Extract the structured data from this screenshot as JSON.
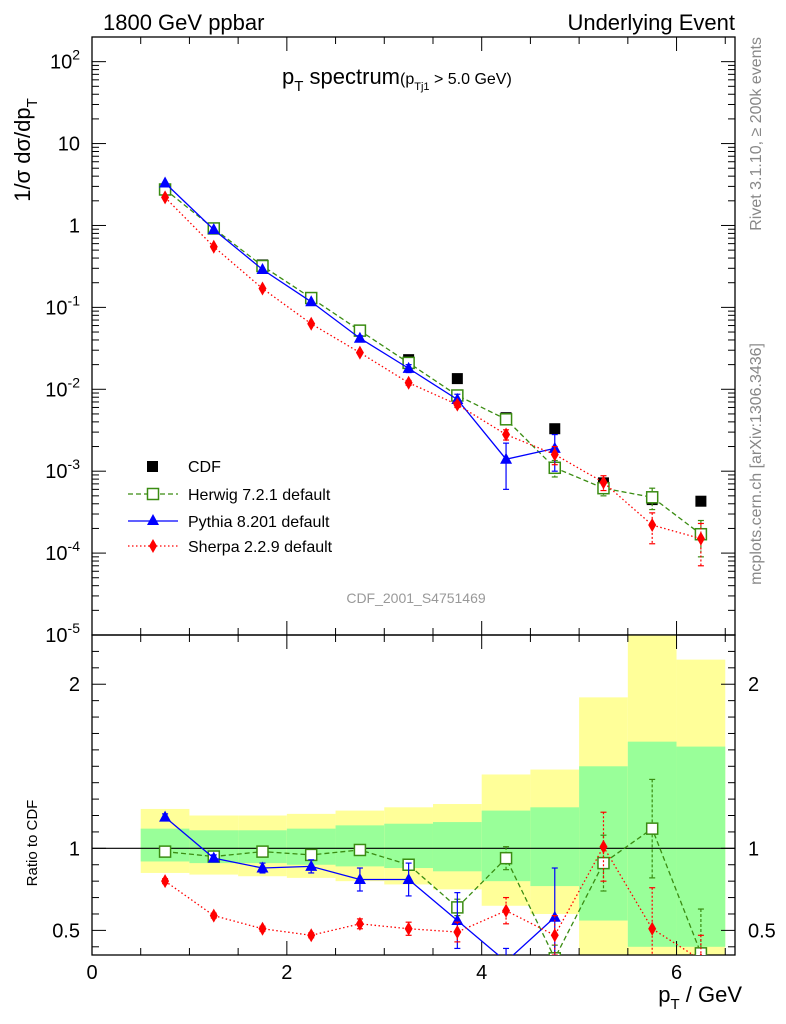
{
  "header": {
    "left": "1800 GeV ppbar",
    "right": "Underlying Event"
  },
  "side": {
    "rivet": "Rivet 3.1.10, ≥ 200k events",
    "mcplots": "mcplots.cern.ch [arXiv:1306.3436]"
  },
  "plot_title": {
    "main": "p",
    "main_sub": "T",
    "main_rest": " spectrum",
    "cut_open": "(p",
    "cut_sub": "Tj1",
    "cut_rest": " > 5.0 GeV)"
  },
  "watermark": "CDF_2001_S4751469",
  "axes": {
    "ylabel_top": "1/σ dσ/dp",
    "ylabel_top_sub": "T",
    "ylabel_bottom": "Ratio to CDF",
    "xlabel": "p",
    "xlabel_sub": "T",
    "xlabel_rest": " / GeV"
  },
  "colors": {
    "cdf": "#000000",
    "herwig": "#3a8c12",
    "pythia": "#0000ff",
    "sherpa": "#ff0000",
    "band_outer": "#ffff99",
    "band_inner": "#99ff99"
  },
  "chart_data": [
    {
      "type": "scatter",
      "panel": "main",
      "yscale": "log",
      "xlim": [
        0,
        6.6
      ],
      "ylim": [
        1e-05,
        200
      ],
      "x_ticks": [
        "0",
        "2",
        "4",
        "6"
      ],
      "y_ticks": [
        {
          "base": "10",
          "exp": "-5"
        },
        {
          "base": "10",
          "exp": "-4"
        },
        {
          "base": "10",
          "exp": "-3"
        },
        {
          "base": "10",
          "exp": "-2"
        },
        {
          "base": "10",
          "exp": "-1"
        },
        {
          "base": "1",
          "exp": ""
        },
        {
          "base": "10",
          "exp": ""
        },
        {
          "base": "10",
          "exp": "2"
        }
      ],
      "x": [
        0.75,
        1.25,
        1.75,
        2.25,
        2.75,
        3.25,
        3.75,
        4.25,
        4.75,
        5.25,
        5.75,
        6.25
      ],
      "series": [
        {
          "name": "CDF",
          "style": "square-filled",
          "values": [
            2.75,
            0.93,
            0.33,
            0.13,
            0.052,
            0.023,
            0.0135,
            0.0045,
            0.0033,
            0.00072,
            0.00045,
            0.00043
          ]
        },
        {
          "name": "Herwig 7.2.1 default",
          "style": "square-open-dashed",
          "values": [
            2.75,
            0.92,
            0.32,
            0.13,
            0.052,
            0.021,
            0.0084,
            0.0043,
            0.0011,
            0.00062,
            0.00048,
            0.00017
          ],
          "errors": [
            0.05,
            0.02,
            0.01,
            0.004,
            0.002,
            0.001,
            0.0005,
            0.0004,
            0.00025,
            0.00012,
            0.00014,
            8e-05
          ]
        },
        {
          "name": "Pythia 8.201 default",
          "style": "triangle-solid",
          "values": [
            3.3,
            0.89,
            0.29,
            0.117,
            0.042,
            0.018,
            0.0075,
            0.0014,
            0.0019,
            null,
            null,
            null
          ],
          "errors": [
            0.05,
            0.02,
            0.01,
            0.004,
            0.003,
            0.002,
            0.0012,
            0.0008,
            0.0009,
            null,
            null,
            null
          ]
        },
        {
          "name": "Sherpa 2.2.9 default",
          "style": "diamond-dotted",
          "values": [
            2.2,
            0.55,
            0.17,
            0.063,
            0.028,
            0.012,
            0.0065,
            0.0028,
            0.0016,
            0.00073,
            0.00022,
            0.00015
          ],
          "errors": [
            0.04,
            0.01,
            0.004,
            0.002,
            0.001,
            0.0008,
            0.0005,
            0.0004,
            0.0004,
            0.00015,
            9e-05,
            8e-05
          ]
        }
      ]
    },
    {
      "type": "scatter",
      "panel": "ratio",
      "xlim": [
        0,
        6.6
      ],
      "ylim": [
        0.35,
        2.3
      ],
      "x_ticks": [
        "0",
        "2",
        "4",
        "6"
      ],
      "y_ticks": [
        "0.5",
        "1",
        "2"
      ],
      "bands": {
        "edges": [
          0.5,
          1.0,
          1.5,
          2.0,
          2.5,
          3.0,
          3.5,
          4.0,
          4.5,
          5.0,
          5.5,
          6.0,
          6.5
        ],
        "outer_lo": [
          0.85,
          0.84,
          0.83,
          0.82,
          0.8,
          0.78,
          0.75,
          0.65,
          0.6,
          0.35,
          0.35,
          0.35
        ],
        "outer_hi": [
          1.24,
          1.2,
          1.2,
          1.21,
          1.23,
          1.25,
          1.27,
          1.45,
          1.48,
          1.92,
          2.37,
          2.15
        ],
        "inner_lo": [
          0.92,
          0.91,
          0.91,
          0.9,
          0.89,
          0.88,
          0.86,
          0.8,
          0.77,
          0.56,
          0.4,
          0.4
        ],
        "inner_hi": [
          1.12,
          1.11,
          1.11,
          1.12,
          1.14,
          1.15,
          1.16,
          1.23,
          1.25,
          1.5,
          1.65,
          1.62
        ]
      },
      "series": [
        {
          "name": "Herwig 7.2.1 default",
          "values": [
            0.98,
            0.95,
            0.98,
            0.96,
            0.99,
            0.9,
            0.64,
            0.94,
            0.33,
            0.91,
            1.12,
            0.36
          ],
          "errors": [
            0.02,
            0.02,
            0.02,
            0.02,
            0.02,
            0.03,
            0.05,
            0.07,
            0.08,
            0.17,
            0.3,
            0.27
          ]
        },
        {
          "name": "Pythia 8.201 default",
          "values": [
            1.19,
            0.94,
            0.88,
            0.89,
            0.81,
            0.81,
            0.56,
            0.31,
            0.58,
            null,
            null,
            null
          ],
          "errors": [
            0.02,
            0.02,
            0.03,
            0.04,
            0.07,
            0.1,
            0.17,
            0.08,
            0.3,
            null,
            null,
            null
          ]
        },
        {
          "name": "Sherpa 2.2.9 default",
          "values": [
            0.8,
            0.59,
            0.51,
            0.47,
            0.54,
            0.51,
            0.49,
            0.62,
            0.47,
            1.01,
            0.51,
            0.32
          ],
          "errors": [
            0.015,
            0.015,
            0.015,
            0.015,
            0.03,
            0.04,
            0.06,
            0.08,
            0.12,
            0.21,
            0.25,
            0.15
          ]
        }
      ]
    }
  ]
}
